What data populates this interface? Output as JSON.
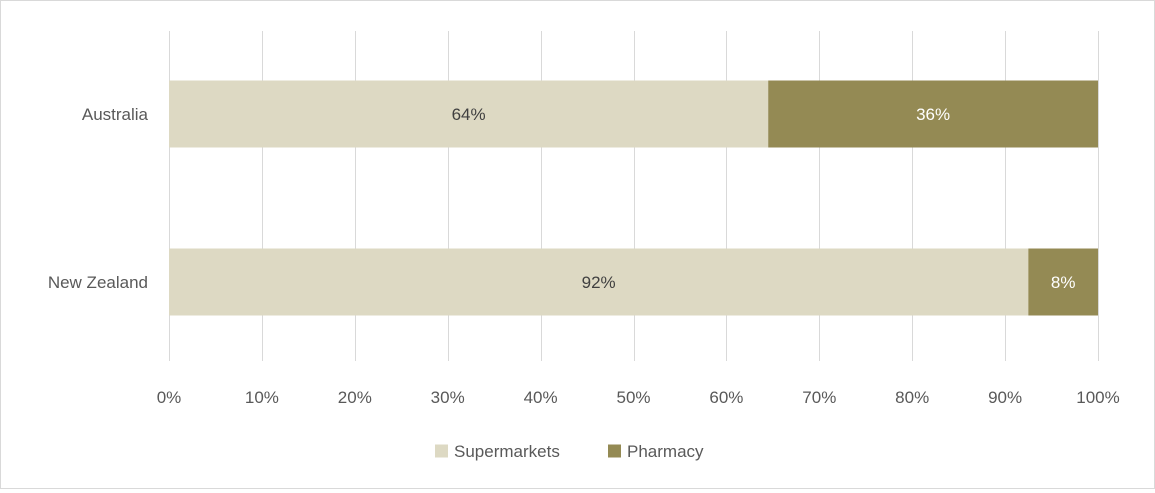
{
  "chart_data": {
    "type": "bar",
    "orientation": "horizontal",
    "stacked": true,
    "categories": [
      "Australia",
      "New Zealand"
    ],
    "series": [
      {
        "name": "Supermarkets",
        "values": [
          64.5,
          92.5
        ],
        "labels": [
          "64%",
          "92%"
        ],
        "color": "#ddd9c3"
      },
      {
        "name": "Pharmacy",
        "values": [
          35.5,
          7.5
        ],
        "labels": [
          "36%",
          "8%"
        ],
        "color": "#948a54"
      }
    ],
    "xlim": [
      0,
      100
    ],
    "x_ticks": [
      0,
      10,
      20,
      30,
      40,
      50,
      60,
      70,
      80,
      90,
      100
    ],
    "x_tick_labels": [
      "0%",
      "10%",
      "20%",
      "30%",
      "40%",
      "50%",
      "60%",
      "70%",
      "80%",
      "90%",
      "100%"
    ],
    "grid": true,
    "legend_position": "bottom",
    "title": "",
    "xlabel": "",
    "ylabel": "",
    "colors": {
      "gridline": "#d9d9d9",
      "axis_text": "#595959",
      "label_dark": "#404040",
      "label_light": "#ffffff"
    }
  }
}
